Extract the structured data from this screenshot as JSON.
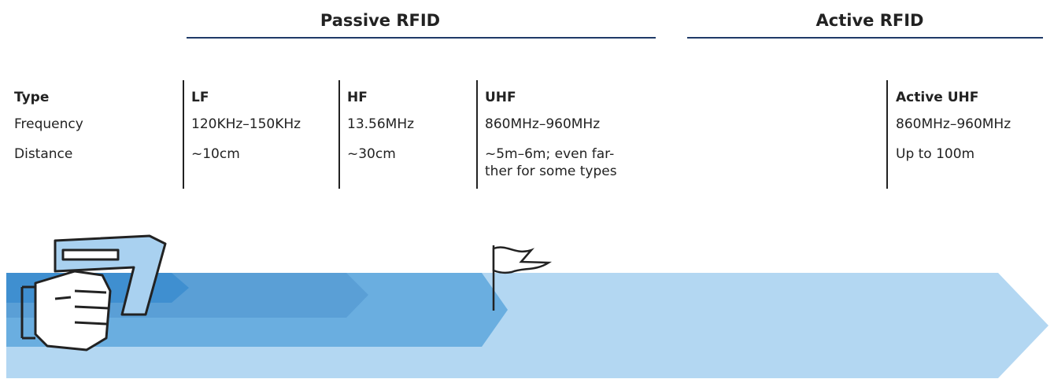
{
  "groups": [
    {
      "title": "Passive RFID"
    },
    {
      "title": "Active RFID"
    }
  ],
  "row_labels": [
    "Type",
    "Frequency",
    "Distance"
  ],
  "columns": [
    {
      "type": "LF",
      "frequency": "120KHz–150KHz",
      "distance": "~10cm"
    },
    {
      "type": "HF",
      "frequency": "13.56MHz",
      "distance": "~30cm"
    },
    {
      "type": "UHF",
      "frequency": "860MHz–960MHz",
      "distance": "~5m–6m; even far-\nther for some types"
    },
    {
      "type": "Active UHF",
      "frequency": "860MHz–960MHz",
      "distance": "Up to 100m"
    }
  ]
}
